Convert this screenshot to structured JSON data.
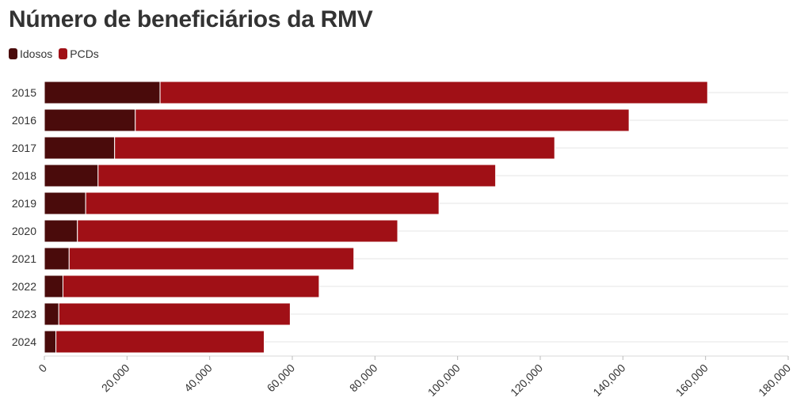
{
  "title": "Número de beneficiários da RMV",
  "legend": [
    {
      "label": "Idosos",
      "color": "#4a0b0b"
    },
    {
      "label": "PCDs",
      "color": "#a01016"
    }
  ],
  "chart_data": {
    "type": "bar",
    "orientation": "horizontal",
    "stacked": true,
    "categories": [
      "2015",
      "2016",
      "2017",
      "2018",
      "2019",
      "2020",
      "2021",
      "2022",
      "2023",
      "2024"
    ],
    "series": [
      {
        "name": "Idosos",
        "color": "#4a0b0b",
        "values": [
          28000,
          22000,
          17000,
          13000,
          10000,
          8000,
          6000,
          4500,
          3500,
          2800
        ]
      },
      {
        "name": "PCDs",
        "color": "#a01016",
        "values": [
          132500,
          119500,
          106500,
          96200,
          85500,
          77500,
          68900,
          62000,
          56000,
          50400
        ]
      }
    ],
    "xlim": [
      0,
      180000
    ],
    "xticks": [
      "0",
      "20,000",
      "40,000",
      "60,000",
      "80,000",
      "100,000",
      "120,000",
      "140,000",
      "160,000",
      "180,000"
    ],
    "xtick_values": [
      0,
      20000,
      40000,
      60000,
      80000,
      100000,
      120000,
      140000,
      160000,
      180000
    ],
    "grid": true,
    "legend_position": "top-left"
  }
}
